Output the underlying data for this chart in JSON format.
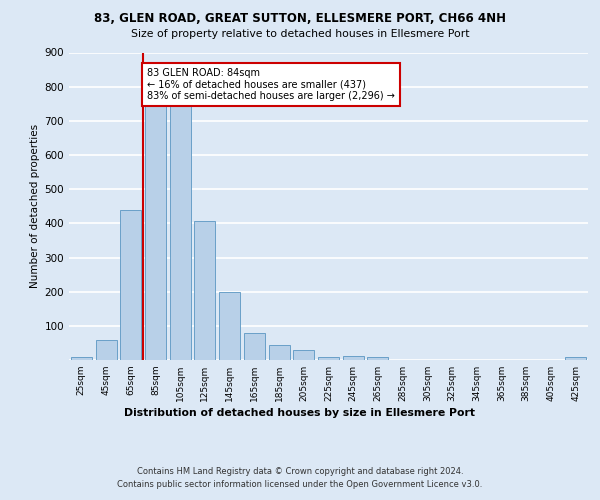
{
  "title1": "83, GLEN ROAD, GREAT SUTTON, ELLESMERE PORT, CH66 4NH",
  "title2": "Size of property relative to detached houses in Ellesmere Port",
  "xlabel": "Distribution of detached houses by size in Ellesmere Port",
  "ylabel": "Number of detached properties",
  "bar_color": "#b8d0e8",
  "bar_edge_color": "#6aa0c8",
  "categories": [
    "25sqm",
    "45sqm",
    "65sqm",
    "85sqm",
    "105sqm",
    "125sqm",
    "145sqm",
    "165sqm",
    "185sqm",
    "205sqm",
    "225sqm",
    "245sqm",
    "265sqm",
    "285sqm",
    "305sqm",
    "325sqm",
    "345sqm",
    "365sqm",
    "385sqm",
    "405sqm",
    "425sqm"
  ],
  "values": [
    10,
    60,
    438,
    752,
    750,
    408,
    200,
    78,
    43,
    30,
    10,
    12,
    10,
    0,
    0,
    0,
    0,
    0,
    0,
    0,
    8
  ],
  "property_bin_index": 3,
  "annotation_text": "83 GLEN ROAD: 84sqm\n← 16% of detached houses are smaller (437)\n83% of semi-detached houses are larger (2,296) →",
  "vline_color": "#cc0000",
  "annotation_box_color": "#ffffff",
  "annotation_box_edge": "#cc0000",
  "ylim": [
    0,
    900
  ],
  "yticks": [
    0,
    100,
    200,
    300,
    400,
    500,
    600,
    700,
    800,
    900
  ],
  "footer": "Contains HM Land Registry data © Crown copyright and database right 2024.\nContains public sector information licensed under the Open Government Licence v3.0.",
  "bg_color": "#dce8f5",
  "plot_bg": "#dce8f5",
  "grid_color": "#ffffff"
}
